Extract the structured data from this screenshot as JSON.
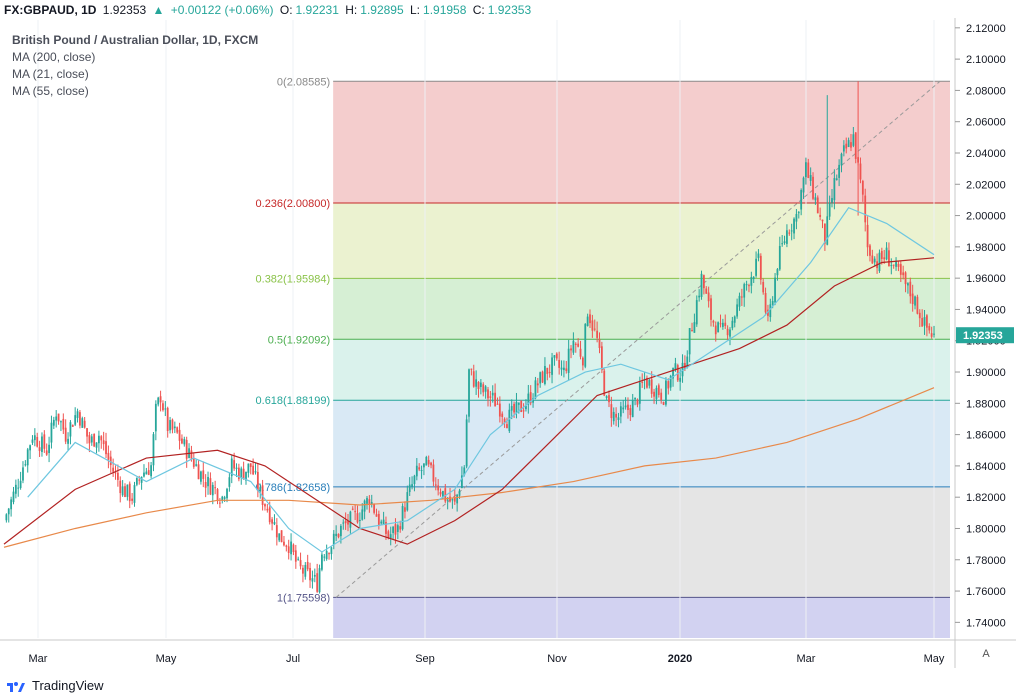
{
  "header": {
    "symbol": "FX:GBPAUD, 1D",
    "last": "1.92353",
    "change_arrow": "▲",
    "change": "+0.00122 (+0.06%)",
    "o_label": "O:",
    "o_value": "1.92231",
    "h_label": "H:",
    "h_value": "1.92895",
    "l_label": "L:",
    "l_value": "1.91958",
    "c_label": "C:",
    "c_value": "1.92353"
  },
  "legend": {
    "title": "British Pound / Australian Dollar, 1D, FXCM",
    "ma200": "MA (200, close)",
    "ma21": "MA (21, close)",
    "ma55": "MA (55, close)"
  },
  "footer": {
    "brand": "TradingView",
    "auto_button": "A"
  },
  "colors": {
    "up": "#26a69a",
    "down": "#ef5350",
    "ma21": "#6ec7e0",
    "ma55": "#b22222",
    "ma200": "#e8894a",
    "fib_0_236": "#f2c4c4",
    "fib_236_382": "#e8f0c8",
    "fib_382_5": "#cfeccd",
    "fib_5_618": "#d3f0e9",
    "fib_618_786": "#d2e5f3",
    "fib_786_1": "#e0e0e0",
    "fib_below": "#cdcdf0"
  },
  "chart_data": {
    "type": "candlestick",
    "instrument": "GBPAUD",
    "ylim": [
      1.73,
      2.125
    ],
    "y_ticks": [
      "2.12000",
      "2.10000",
      "2.08000",
      "2.06000",
      "2.04000",
      "2.02000",
      "2.00000",
      "1.98000",
      "1.96000",
      "1.94000",
      "1.92000",
      "1.90000",
      "1.88000",
      "1.86000",
      "1.84000",
      "1.82000",
      "1.80000",
      "1.78000",
      "1.76000",
      "1.74000"
    ],
    "x_ticks": [
      "Mar",
      "May",
      "Jul",
      "Sep",
      "Nov",
      "2020",
      "Mar",
      "May"
    ],
    "last_price": "1.92353",
    "fib_levels": [
      {
        "ratio": 0,
        "label": "0(2.08585)",
        "price": 2.08585
      },
      {
        "ratio": 0.236,
        "label": "0.236(2.00800)",
        "price": 2.008
      },
      {
        "ratio": 0.382,
        "label": "0.382(1.95984)",
        "price": 1.95984
      },
      {
        "ratio": 0.5,
        "label": "0.5(1.92092)",
        "price": 1.92092
      },
      {
        "ratio": 0.618,
        "label": "0.618(1.88199)",
        "price": 1.88199
      },
      {
        "ratio": 0.786,
        "label": "0.786(1.82658)",
        "price": 1.82658
      },
      {
        "ratio": 1,
        "label": "1(1.75598)",
        "price": 1.75598
      }
    ],
    "close_path": [
      [
        0,
        1.805
      ],
      [
        6,
        1.83
      ],
      [
        12,
        1.86
      ],
      [
        18,
        1.85
      ],
      [
        22,
        1.875
      ],
      [
        26,
        1.86
      ],
      [
        31,
        1.875
      ],
      [
        36,
        1.855
      ],
      [
        40,
        1.86
      ],
      [
        45,
        1.84
      ],
      [
        50,
        1.825
      ],
      [
        54,
        1.82
      ],
      [
        58,
        1.835
      ],
      [
        62,
        1.84
      ],
      [
        64,
        1.875
      ],
      [
        66,
        1.885
      ],
      [
        69,
        1.865
      ],
      [
        73,
        1.86
      ],
      [
        77,
        1.85
      ],
      [
        81,
        1.84
      ],
      [
        85,
        1.83
      ],
      [
        89,
        1.825
      ],
      [
        92,
        1.82
      ],
      [
        96,
        1.84
      ],
      [
        100,
        1.835
      ],
      [
        104,
        1.84
      ],
      [
        108,
        1.822
      ],
      [
        112,
        1.81
      ],
      [
        116,
        1.795
      ],
      [
        120,
        1.79
      ],
      [
        124,
        1.775
      ],
      [
        128,
        1.77
      ],
      [
        132,
        1.765
      ],
      [
        134,
        1.785
      ],
      [
        138,
        1.79
      ],
      [
        142,
        1.8
      ],
      [
        146,
        1.805
      ],
      [
        150,
        1.81
      ],
      [
        154,
        1.82
      ],
      [
        158,
        1.805
      ],
      [
        162,
        1.795
      ],
      [
        166,
        1.8
      ],
      [
        170,
        1.82
      ],
      [
        174,
        1.835
      ],
      [
        178,
        1.84
      ],
      [
        182,
        1.83
      ],
      [
        186,
        1.82
      ],
      [
        190,
        1.815
      ],
      [
        194,
        1.84
      ],
      [
        196,
        1.9
      ],
      [
        200,
        1.89
      ],
      [
        204,
        1.885
      ],
      [
        208,
        1.88
      ],
      [
        212,
        1.87
      ],
      [
        216,
        1.875
      ],
      [
        220,
        1.88
      ],
      [
        224,
        1.89
      ],
      [
        228,
        1.9
      ],
      [
        232,
        1.905
      ],
      [
        236,
        1.9
      ],
      [
        240,
        1.92
      ],
      [
        244,
        1.91
      ],
      [
        246,
        1.94
      ],
      [
        250,
        1.92
      ],
      [
        254,
        1.88
      ],
      [
        258,
        1.87
      ],
      [
        262,
        1.875
      ],
      [
        266,
        1.88
      ],
      [
        270,
        1.895
      ],
      [
        274,
        1.89
      ],
      [
        278,
        1.885
      ],
      [
        282,
        1.9
      ],
      [
        286,
        1.9
      ],
      [
        290,
        1.93
      ],
      [
        294,
        1.96
      ],
      [
        298,
        1.935
      ],
      [
        302,
        1.925
      ],
      [
        306,
        1.93
      ],
      [
        310,
        1.945
      ],
      [
        314,
        1.96
      ],
      [
        318,
        1.97
      ],
      [
        322,
        1.93
      ],
      [
        326,
        1.97
      ],
      [
        330,
        1.99
      ],
      [
        334,
        2.0
      ],
      [
        338,
        2.03
      ],
      [
        342,
        2.01
      ],
      [
        346,
        1.985
      ],
      [
        350,
        2.02
      ],
      [
        354,
        2.04
      ],
      [
        358,
        2.05
      ],
      [
        362,
        2.01
      ],
      [
        364,
        1.98
      ],
      [
        368,
        1.97
      ],
      [
        372,
        1.975
      ],
      [
        376,
        1.965
      ],
      [
        380,
        1.955
      ],
      [
        384,
        1.945
      ],
      [
        388,
        1.93
      ],
      [
        392,
        1.923
      ]
    ],
    "ma21_path": [
      [
        10,
        1.82
      ],
      [
        30,
        1.855
      ],
      [
        60,
        1.83
      ],
      [
        80,
        1.845
      ],
      [
        104,
        1.83
      ],
      [
        120,
        1.8
      ],
      [
        134,
        1.785
      ],
      [
        150,
        1.8
      ],
      [
        170,
        1.805
      ],
      [
        190,
        1.825
      ],
      [
        205,
        1.86
      ],
      [
        225,
        1.885
      ],
      [
        245,
        1.9
      ],
      [
        260,
        1.905
      ],
      [
        280,
        1.895
      ],
      [
        300,
        1.915
      ],
      [
        320,
        1.935
      ],
      [
        340,
        1.97
      ],
      [
        356,
        2.005
      ],
      [
        372,
        1.995
      ],
      [
        392,
        1.975
      ]
    ],
    "ma55_path": [
      [
        0,
        1.79
      ],
      [
        30,
        1.825
      ],
      [
        60,
        1.845
      ],
      [
        90,
        1.85
      ],
      [
        110,
        1.84
      ],
      [
        130,
        1.82
      ],
      [
        150,
        1.8
      ],
      [
        170,
        1.79
      ],
      [
        190,
        1.805
      ],
      [
        210,
        1.825
      ],
      [
        230,
        1.855
      ],
      [
        250,
        1.885
      ],
      [
        270,
        1.895
      ],
      [
        290,
        1.905
      ],
      [
        310,
        1.915
      ],
      [
        330,
        1.93
      ],
      [
        350,
        1.955
      ],
      [
        370,
        1.97
      ],
      [
        392,
        1.973
      ]
    ],
    "ma200_path": [
      [
        0,
        1.788
      ],
      [
        30,
        1.8
      ],
      [
        60,
        1.81
      ],
      [
        90,
        1.818
      ],
      [
        120,
        1.818
      ],
      [
        150,
        1.815
      ],
      [
        180,
        1.818
      ],
      [
        210,
        1.823
      ],
      [
        240,
        1.83
      ],
      [
        270,
        1.84
      ],
      [
        300,
        1.845
      ],
      [
        330,
        1.855
      ],
      [
        360,
        1.87
      ],
      [
        392,
        1.89
      ]
    ],
    "trendline": {
      "from": [
        140,
        1.75598
      ],
      "to": [
        392,
        2.08585
      ]
    }
  }
}
